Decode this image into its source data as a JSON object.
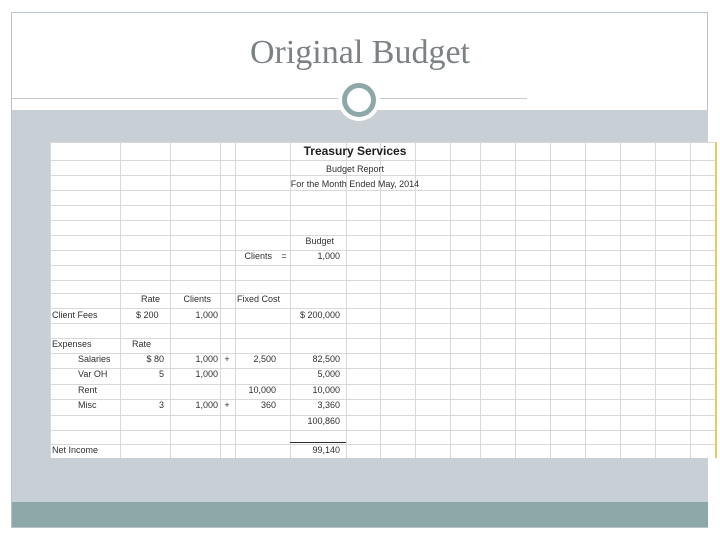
{
  "slide": {
    "title": "Original Budget"
  },
  "report": {
    "company": "Treasury Services",
    "name": "Budget Report",
    "period": "For the Month Ended May, 2014",
    "budget_header": "Budget",
    "clients_label": "Clients",
    "clients_eq": "=",
    "clients_value": "1,000",
    "col_rate": "Rate",
    "col_clients": "Clients",
    "col_fixed_cost": "Fixed Cost",
    "client_fees": {
      "label": "Client Fees",
      "rate": "$ 200",
      "clients": "1,000",
      "total": "$ 200,000"
    },
    "expenses_label": "Expenses",
    "expenses_rate_label": "Rate",
    "lines": [
      {
        "label": "Salaries",
        "rate": "$ 80",
        "clients": "1,000",
        "plus": "+",
        "fixed": "2,500",
        "total": "82,500"
      },
      {
        "label": "Var OH",
        "rate": "5",
        "clients": "1,000",
        "plus": "",
        "fixed": "",
        "total": "5,000"
      },
      {
        "label": "Rent",
        "rate": "",
        "clients": "",
        "plus": "",
        "fixed": "10,000",
        "total": "10,000"
      },
      {
        "label": "Misc",
        "rate": "3",
        "clients": "1,000",
        "plus": "+",
        "fixed": "360",
        "total": "3,360"
      }
    ],
    "total_expenses": "100,860",
    "net_income": {
      "label": "Net Income",
      "value": "99,140"
    }
  }
}
